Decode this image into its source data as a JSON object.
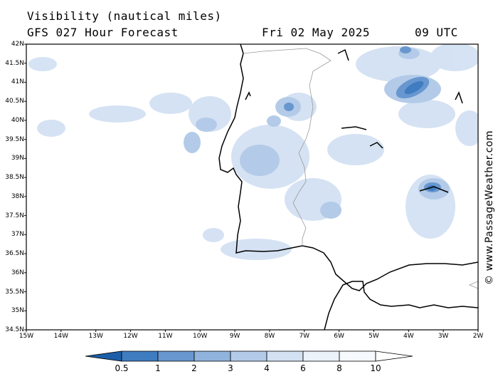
{
  "header": {
    "title": "Visibility (nautical miles)",
    "subtitle": "GFS 027 Hour Forecast",
    "date": "Fri 02 May 2025",
    "time": "09 UTC"
  },
  "credit": "© www.PassageWeather.com",
  "map": {
    "region": "Iberian Peninsula / Gulf of Cadiz",
    "lat_labels": [
      "42N",
      "41.5N",
      "41N",
      "40.5N",
      "40N",
      "39.5N",
      "39N",
      "38.5N",
      "38N",
      "37.5N",
      "37N",
      "36.5N",
      "36N",
      "35.5N",
      "35N",
      "34.5N"
    ],
    "lon_labels": [
      "15W",
      "14W",
      "13W",
      "12W",
      "11W",
      "10W",
      "9W",
      "8W",
      "7W",
      "6W",
      "5W",
      "4W",
      "3W",
      "2W"
    ],
    "lat_range": [
      34.5,
      42
    ],
    "lon_range": [
      -15,
      -2
    ]
  },
  "legend": {
    "values": [
      "0.5",
      "1",
      "2",
      "3",
      "4",
      "6",
      "8",
      "10"
    ],
    "colors": [
      "#1c5fa8",
      "#3f7cc0",
      "#6897cf",
      "#8fb3dd",
      "#b3cbe8",
      "#d3e1f3",
      "#ebf2fa",
      "#ffffff"
    ]
  }
}
